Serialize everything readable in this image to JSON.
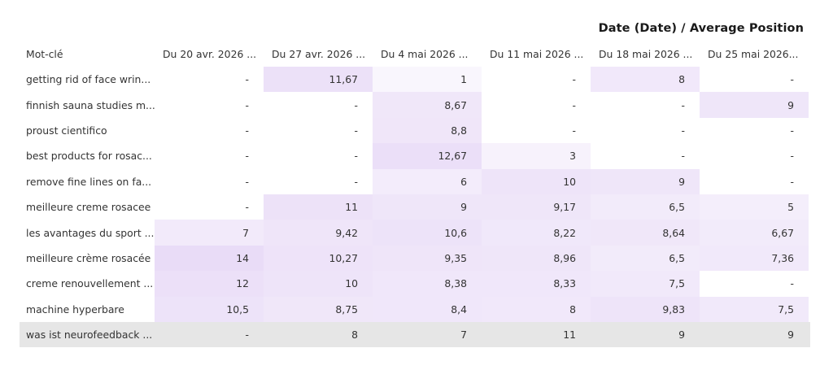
{
  "title": "Date (Date) / Average Position",
  "chart_data": {
    "type": "heatmap",
    "title": "Date (Date) / Average Position",
    "row_header": "Mot-clé",
    "columns": [
      "Du 20 avr. 2026 ...",
      "Du 27 avr. 2026 ...",
      "Du 4 mai 2026 ...",
      "Du 11 mai 2026 ...",
      "Du 18 mai 2026 ...",
      "Du 25 mai 2026..."
    ],
    "rows": [
      {
        "keyword": "getting rid of face wrin...",
        "values": [
          "-",
          "11,67",
          "1",
          "-",
          "8",
          "-"
        ]
      },
      {
        "keyword": "finnish sauna studies m...",
        "values": [
          "-",
          "-",
          "8,67",
          "-",
          "-",
          "9"
        ]
      },
      {
        "keyword": "proust cientifico",
        "values": [
          "-",
          "-",
          "8,8",
          "-",
          "-",
          "-"
        ]
      },
      {
        "keyword": "best products for rosac...",
        "values": [
          "-",
          "-",
          "12,67",
          "3",
          "-",
          "-"
        ]
      },
      {
        "keyword": "remove fine lines on fa...",
        "values": [
          "-",
          "-",
          "6",
          "10",
          "9",
          "-"
        ]
      },
      {
        "keyword": "meilleure creme rosacee",
        "values": [
          "-",
          "11",
          "9",
          "9,17",
          "6,5",
          "5"
        ]
      },
      {
        "keyword": "les avantages du sport ...",
        "values": [
          "7",
          "9,42",
          "10,6",
          "8,22",
          "8,64",
          "6,67"
        ]
      },
      {
        "keyword": "meilleure crème rosacée",
        "values": [
          "14",
          "10,27",
          "9,35",
          "8,96",
          "6,5",
          "7,36"
        ]
      },
      {
        "keyword": "creme renouvellement ...",
        "values": [
          "12",
          "10",
          "8,38",
          "8,33",
          "7,5",
          "-"
        ]
      },
      {
        "keyword": "machine hyperbare",
        "values": [
          "10,5",
          "8,75",
          "8,4",
          "8",
          "9,83",
          "7,5"
        ]
      },
      {
        "keyword": "was ist neurofeedback ...",
        "values": [
          "-",
          "8",
          "7",
          "11",
          "9",
          "9"
        ]
      }
    ],
    "highlighted_row": 10,
    "cell_color": "#e9dcf7"
  }
}
